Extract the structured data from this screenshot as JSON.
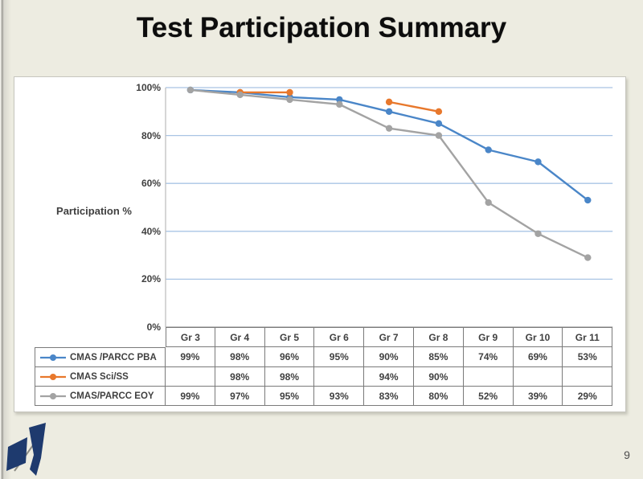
{
  "slide": {
    "title": "Test Participation Summary",
    "page_number": "9"
  },
  "chart_data": {
    "type": "line",
    "title": "",
    "ylabel": "Participation %",
    "xlabel": "",
    "categories": [
      "Gr 3",
      "Gr 4",
      "Gr 5",
      "Gr 6",
      "Gr 7",
      "Gr 8",
      "Gr 9",
      "Gr 10",
      "Gr 11"
    ],
    "series": [
      {
        "name": "CMAS /PARCC PBA",
        "color": "#4a86c8",
        "values": [
          99,
          98,
          96,
          95,
          90,
          85,
          74,
          69,
          53
        ]
      },
      {
        "name": "CMAS Sci/SS",
        "color": "#e8782c",
        "values": [
          null,
          98,
          98,
          null,
          94,
          90,
          null,
          null,
          null
        ]
      },
      {
        "name": "CMAS/PARCC EOY",
        "color": "#a3a3a3",
        "values": [
          99,
          97,
          95,
          93,
          83,
          80,
          52,
          39,
          29
        ]
      }
    ],
    "y_ticks": [
      {
        "label": "100%",
        "value": 100
      },
      {
        "label": "80%",
        "value": 80
      },
      {
        "label": "60%",
        "value": 60
      },
      {
        "label": "40%",
        "value": 40
      },
      {
        "label": "20%",
        "value": 20
      },
      {
        "label": "0%",
        "value": 0
      }
    ],
    "ylim": [
      0,
      100
    ],
    "grid": true,
    "grid_color": "#a9c4e4",
    "axis_color": "#bfbfbf",
    "baseline_color": "#9a9a9a",
    "value_suffix": "%",
    "legend_position": "data-table-left",
    "data_table": true
  }
}
